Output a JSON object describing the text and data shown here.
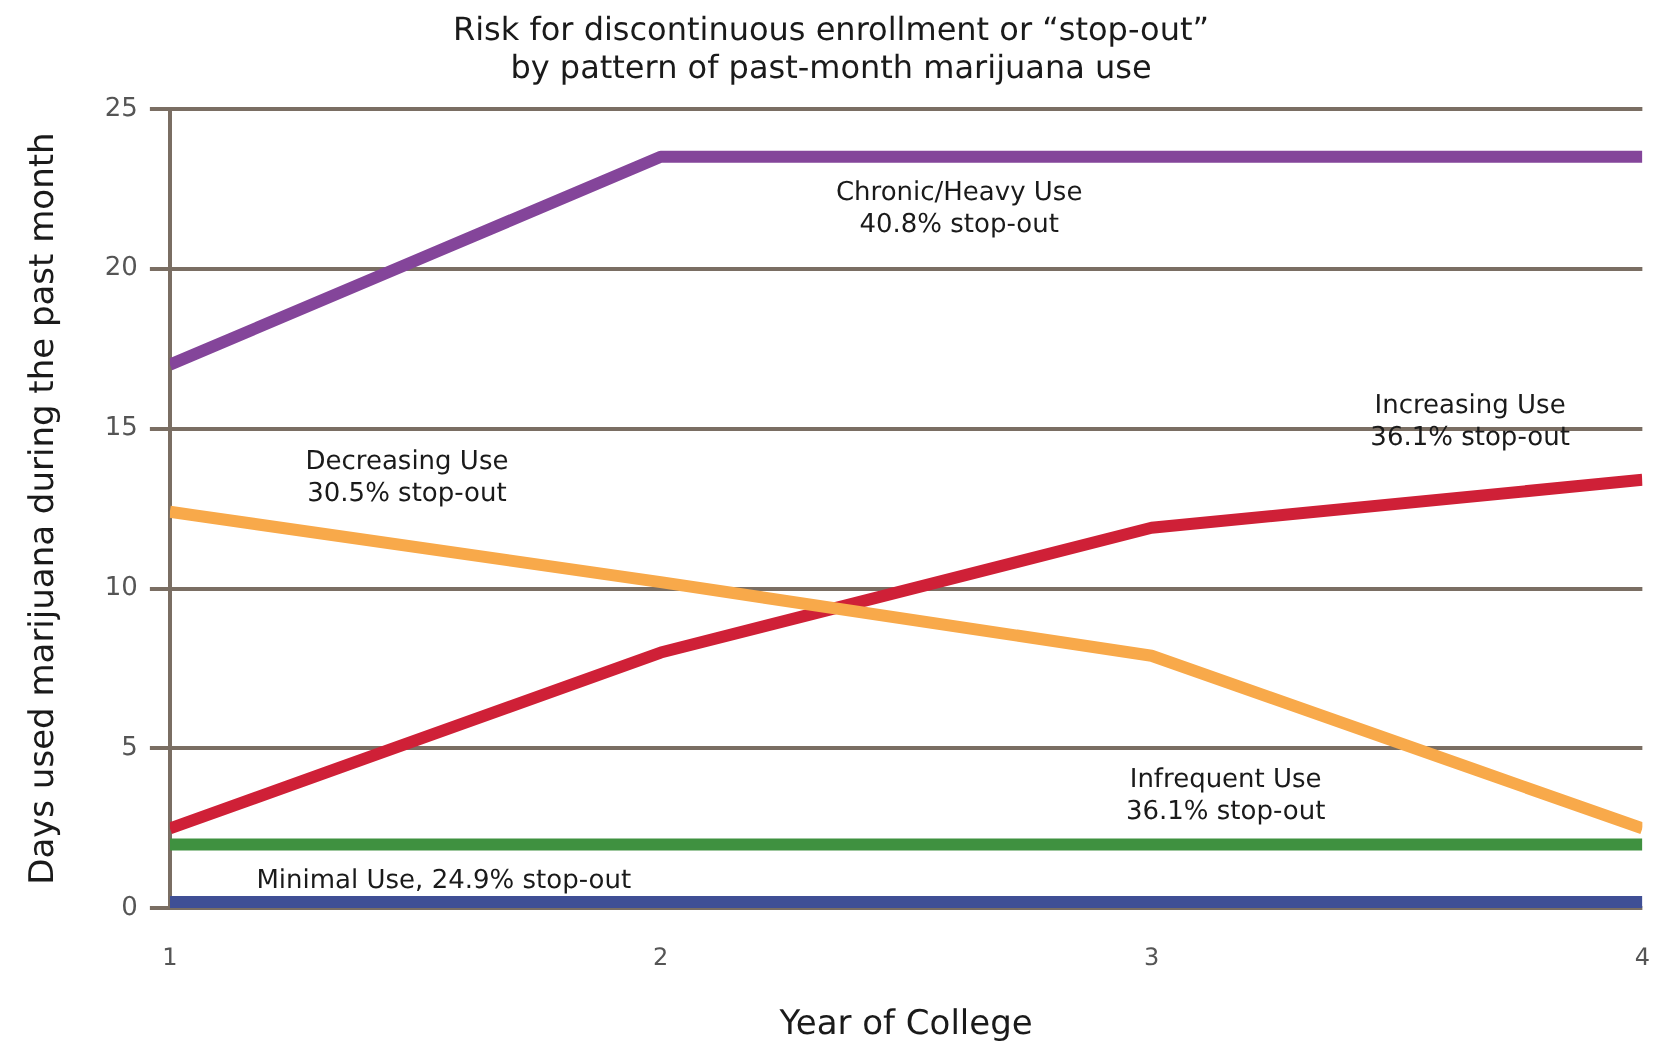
{
  "chart_data": {
    "type": "line",
    "title": "Risk for discontinuous enrollment or “stop-out”\nby pattern of past-month marijuana use",
    "xlabel": "Year of College",
    "ylabel": "Days used marijuana during the past month",
    "x": [
      1,
      2,
      3,
      4
    ],
    "series": [
      {
        "name": "Chronic/Heavy Use\n40.8% stop-out",
        "color": "#84459a",
        "values": [
          17,
          23.5,
          23.5,
          23.5
        ]
      },
      {
        "name": "Decreasing Use\n30.5% stop-out",
        "color": "#f8a94a",
        "values": [
          12.4,
          10.2,
          7.9,
          2.5
        ]
      },
      {
        "name": "Increasing Use\n36.1% stop-out",
        "color": "#cf2037",
        "values": [
          2.5,
          8.0,
          11.9,
          13.4
        ]
      },
      {
        "name": "Infrequent Use\n36.1% stop-out",
        "color": "#3f9140",
        "values": [
          2.0,
          2.0,
          2.0,
          2.0
        ]
      },
      {
        "name": "Minimal Use, 24.9% stop-out",
        "color": "#3f4f95",
        "values": [
          0.2,
          0.2,
          0.2,
          0.2
        ]
      }
    ],
    "xlim": [
      1,
      4
    ],
    "xticks": [
      1,
      2,
      3,
      4
    ],
    "ylim": [
      0,
      25
    ],
    "yticks": [
      0,
      5,
      10,
      15,
      20,
      25
    ],
    "grid": "y",
    "legend": false,
    "marker": "none",
    "line_style": "solid"
  }
}
